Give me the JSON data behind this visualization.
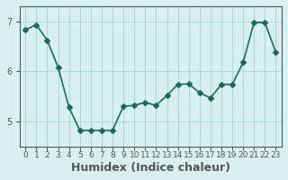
{
  "x": [
    0,
    1,
    2,
    3,
    4,
    5,
    6,
    7,
    8,
    9,
    10,
    11,
    12,
    13,
    14,
    15,
    16,
    17,
    18,
    19,
    20,
    21,
    22,
    23
  ],
  "y": [
    6.83,
    6.93,
    6.62,
    6.08,
    5.28,
    4.82,
    4.82,
    4.82,
    4.82,
    5.3,
    5.32,
    5.38,
    5.32,
    5.52,
    5.74,
    5.75,
    5.57,
    5.47,
    5.74,
    5.74,
    6.18,
    6.98,
    6.97,
    6.38
  ],
  "line_color": "#1a6b5e",
  "marker": "D",
  "marker_size": 3,
  "bg_color": "#d8f0f0",
  "grid_color": "#b0d8d8",
  "axis_color": "#555555",
  "xlabel": "Humidex (Indice chaleur)",
  "xlabel_fontsize": 9,
  "tick_fontsize": 7,
  "yticks": [
    5,
    6,
    7
  ],
  "ylim": [
    4.5,
    7.3
  ],
  "xlim": [
    -0.5,
    23.5
  ]
}
